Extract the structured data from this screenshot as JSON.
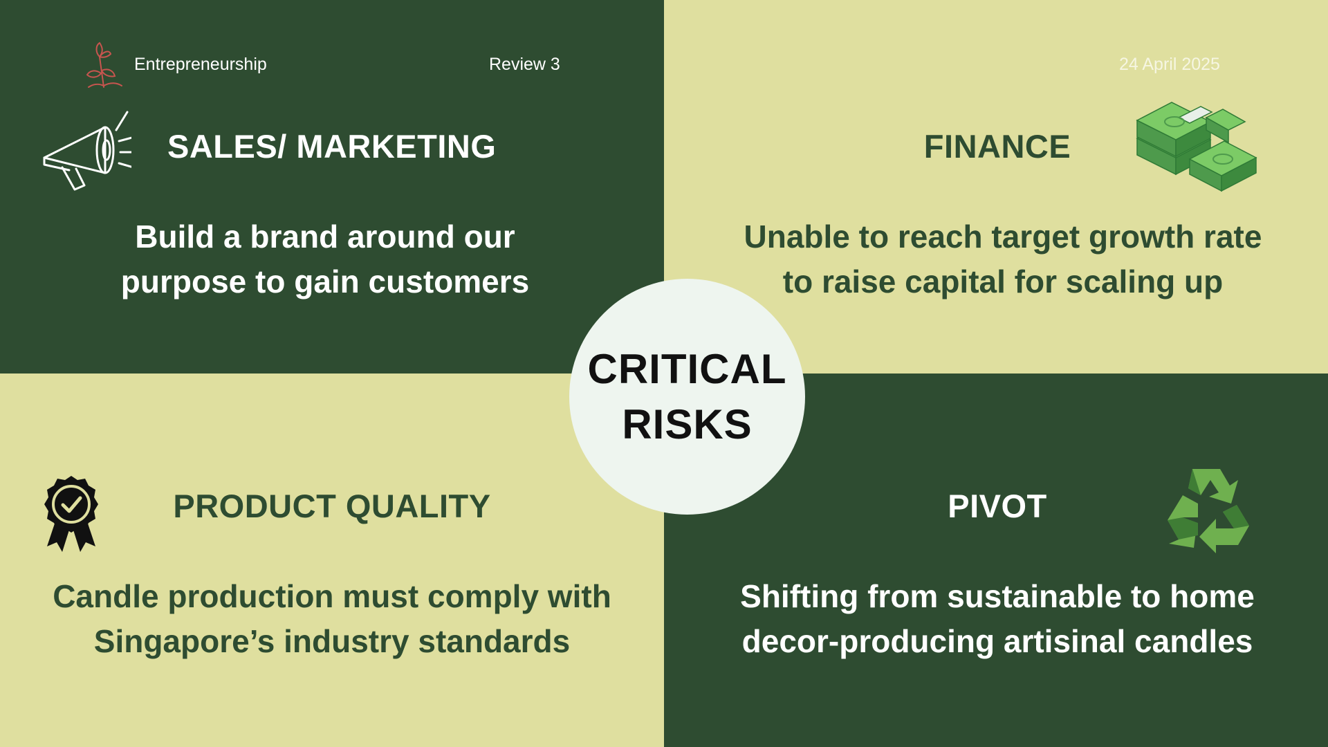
{
  "header": {
    "brand": "Entrepreneurship",
    "review": "Review 3",
    "date": "24 April 2025"
  },
  "center": {
    "line1": "CRITICAL",
    "line2": "RISKS"
  },
  "quadrants": {
    "sales": {
      "title": "SALES/ MARKETING",
      "line1": "Build a brand around our",
      "line2": "purpose to gain customers",
      "icon": "megaphone-icon"
    },
    "finance": {
      "title": "FINANCE",
      "line1": "Unable to reach target growth rate",
      "line2": "to raise capital for scaling up",
      "icon": "money-stack-icon"
    },
    "quality": {
      "title": "PRODUCT QUALITY",
      "line1": "Candle production must comply with",
      "line2": "Singapore’s industry standards",
      "icon": "award-badge-icon"
    },
    "pivot": {
      "title": "PIVOT",
      "line1": "Shifting from sustainable to home",
      "line2": "decor-producing artisinal candles",
      "icon": "recycle-icon"
    }
  },
  "colors": {
    "dark_green": "#2e4c31",
    "light_olive": "#dfdf9f",
    "circle": "#eef5ef"
  }
}
